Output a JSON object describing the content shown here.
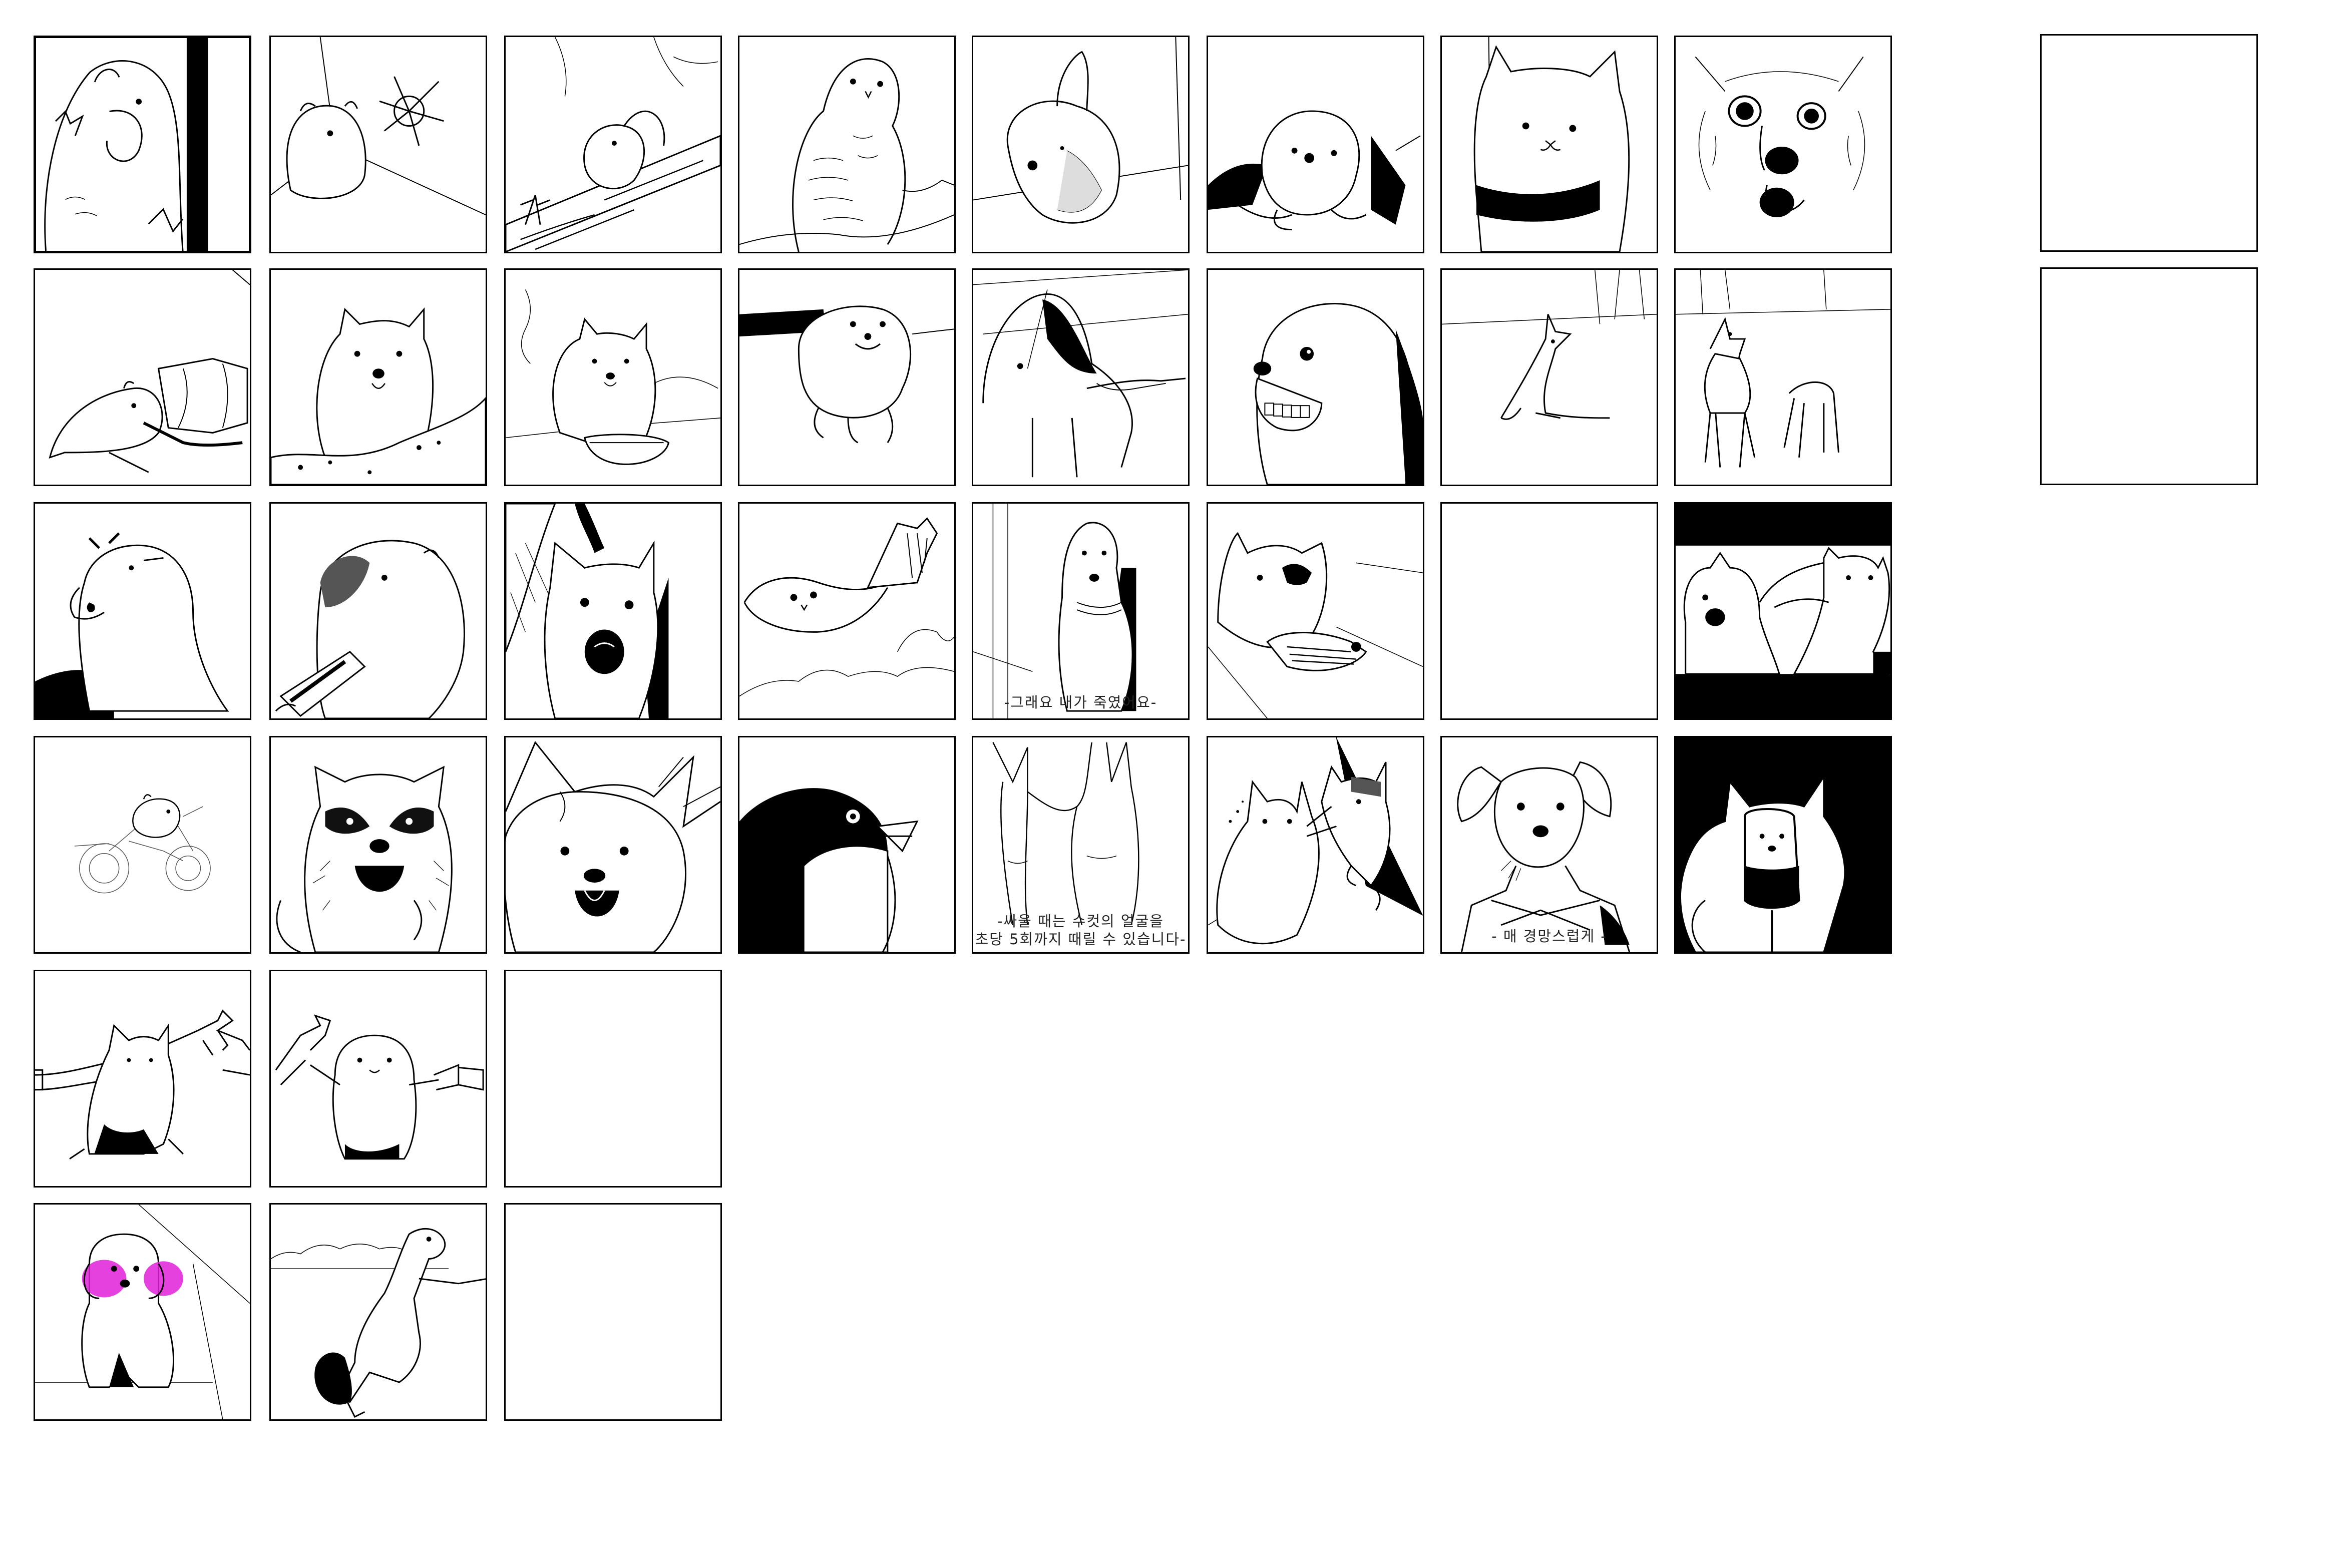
{
  "sheet": {
    "tiles": [
      {
        "id": "r1c1",
        "subject": "hamster-icon"
      },
      {
        "id": "r1c2",
        "subject": "hamster-icon"
      },
      {
        "id": "r1c3",
        "subject": "squirrel-icon"
      },
      {
        "id": "r1c4",
        "subject": "owl-icon"
      },
      {
        "id": "r1c5",
        "subject": "dog-icon"
      },
      {
        "id": "r1c6",
        "subject": "dog-icon"
      },
      {
        "id": "r1c7",
        "subject": "cat-icon"
      },
      {
        "id": "r1c8",
        "subject": "dog-icon"
      },
      {
        "id": "r1c10",
        "subject": "blank"
      },
      {
        "id": "r2c1",
        "subject": "hamster-icon"
      },
      {
        "id": "r2c2",
        "subject": "marmot-icon"
      },
      {
        "id": "r2c3",
        "subject": "quokka-icon"
      },
      {
        "id": "r2c4",
        "subject": "seal-icon"
      },
      {
        "id": "r2c5",
        "subject": "dog-icon"
      },
      {
        "id": "r2c6",
        "subject": "dog-icon"
      },
      {
        "id": "r2c7",
        "subject": "deer-icon"
      },
      {
        "id": "r2c8",
        "subject": "deer-icon"
      },
      {
        "id": "r2c10",
        "subject": "blank"
      },
      {
        "id": "r3c1",
        "subject": "marmot-icon"
      },
      {
        "id": "r3c2",
        "subject": "capybara-icon"
      },
      {
        "id": "r3c3",
        "subject": "cat-icon"
      },
      {
        "id": "r3c4",
        "subject": "owl-icon"
      },
      {
        "id": "r3c5",
        "subject": "dog-icon",
        "caption": "-그래요 내가 죽였어요-"
      },
      {
        "id": "r3c6",
        "subject": "cat-icon"
      },
      {
        "id": "r3c7",
        "subject": "dog-icon"
      },
      {
        "id": "r3c8",
        "subject": "dog-icon"
      },
      {
        "id": "r4c1",
        "subject": "hamster-icon"
      },
      {
        "id": "r4c2",
        "subject": "raccoon-icon"
      },
      {
        "id": "r4c3",
        "subject": "dog-icon"
      },
      {
        "id": "r4c4",
        "subject": "penguin-icon"
      },
      {
        "id": "r4c5",
        "subject": "rabbit-icon",
        "caption_lines": [
          "-싸울 때는 수컷의 얼굴을",
          "초당 5회까지 때릴 수 있습니다-"
        ]
      },
      {
        "id": "r4c6",
        "subject": "cat-icon"
      },
      {
        "id": "r4c7",
        "subject": "dog-icon",
        "caption": "- 매 경망스럽게 -"
      },
      {
        "id": "r4c8",
        "subject": "dog-icon"
      },
      {
        "id": "r5c1",
        "subject": "cat-icon"
      },
      {
        "id": "r5c2",
        "subject": "hamster-icon"
      },
      {
        "id": "r5c3",
        "subject": "blank"
      },
      {
        "id": "r6c1",
        "subject": "dog-icon",
        "accent": "#e020d8"
      },
      {
        "id": "r6c2",
        "subject": "otter-icon"
      },
      {
        "id": "r6c3",
        "subject": "blank"
      }
    ]
  }
}
